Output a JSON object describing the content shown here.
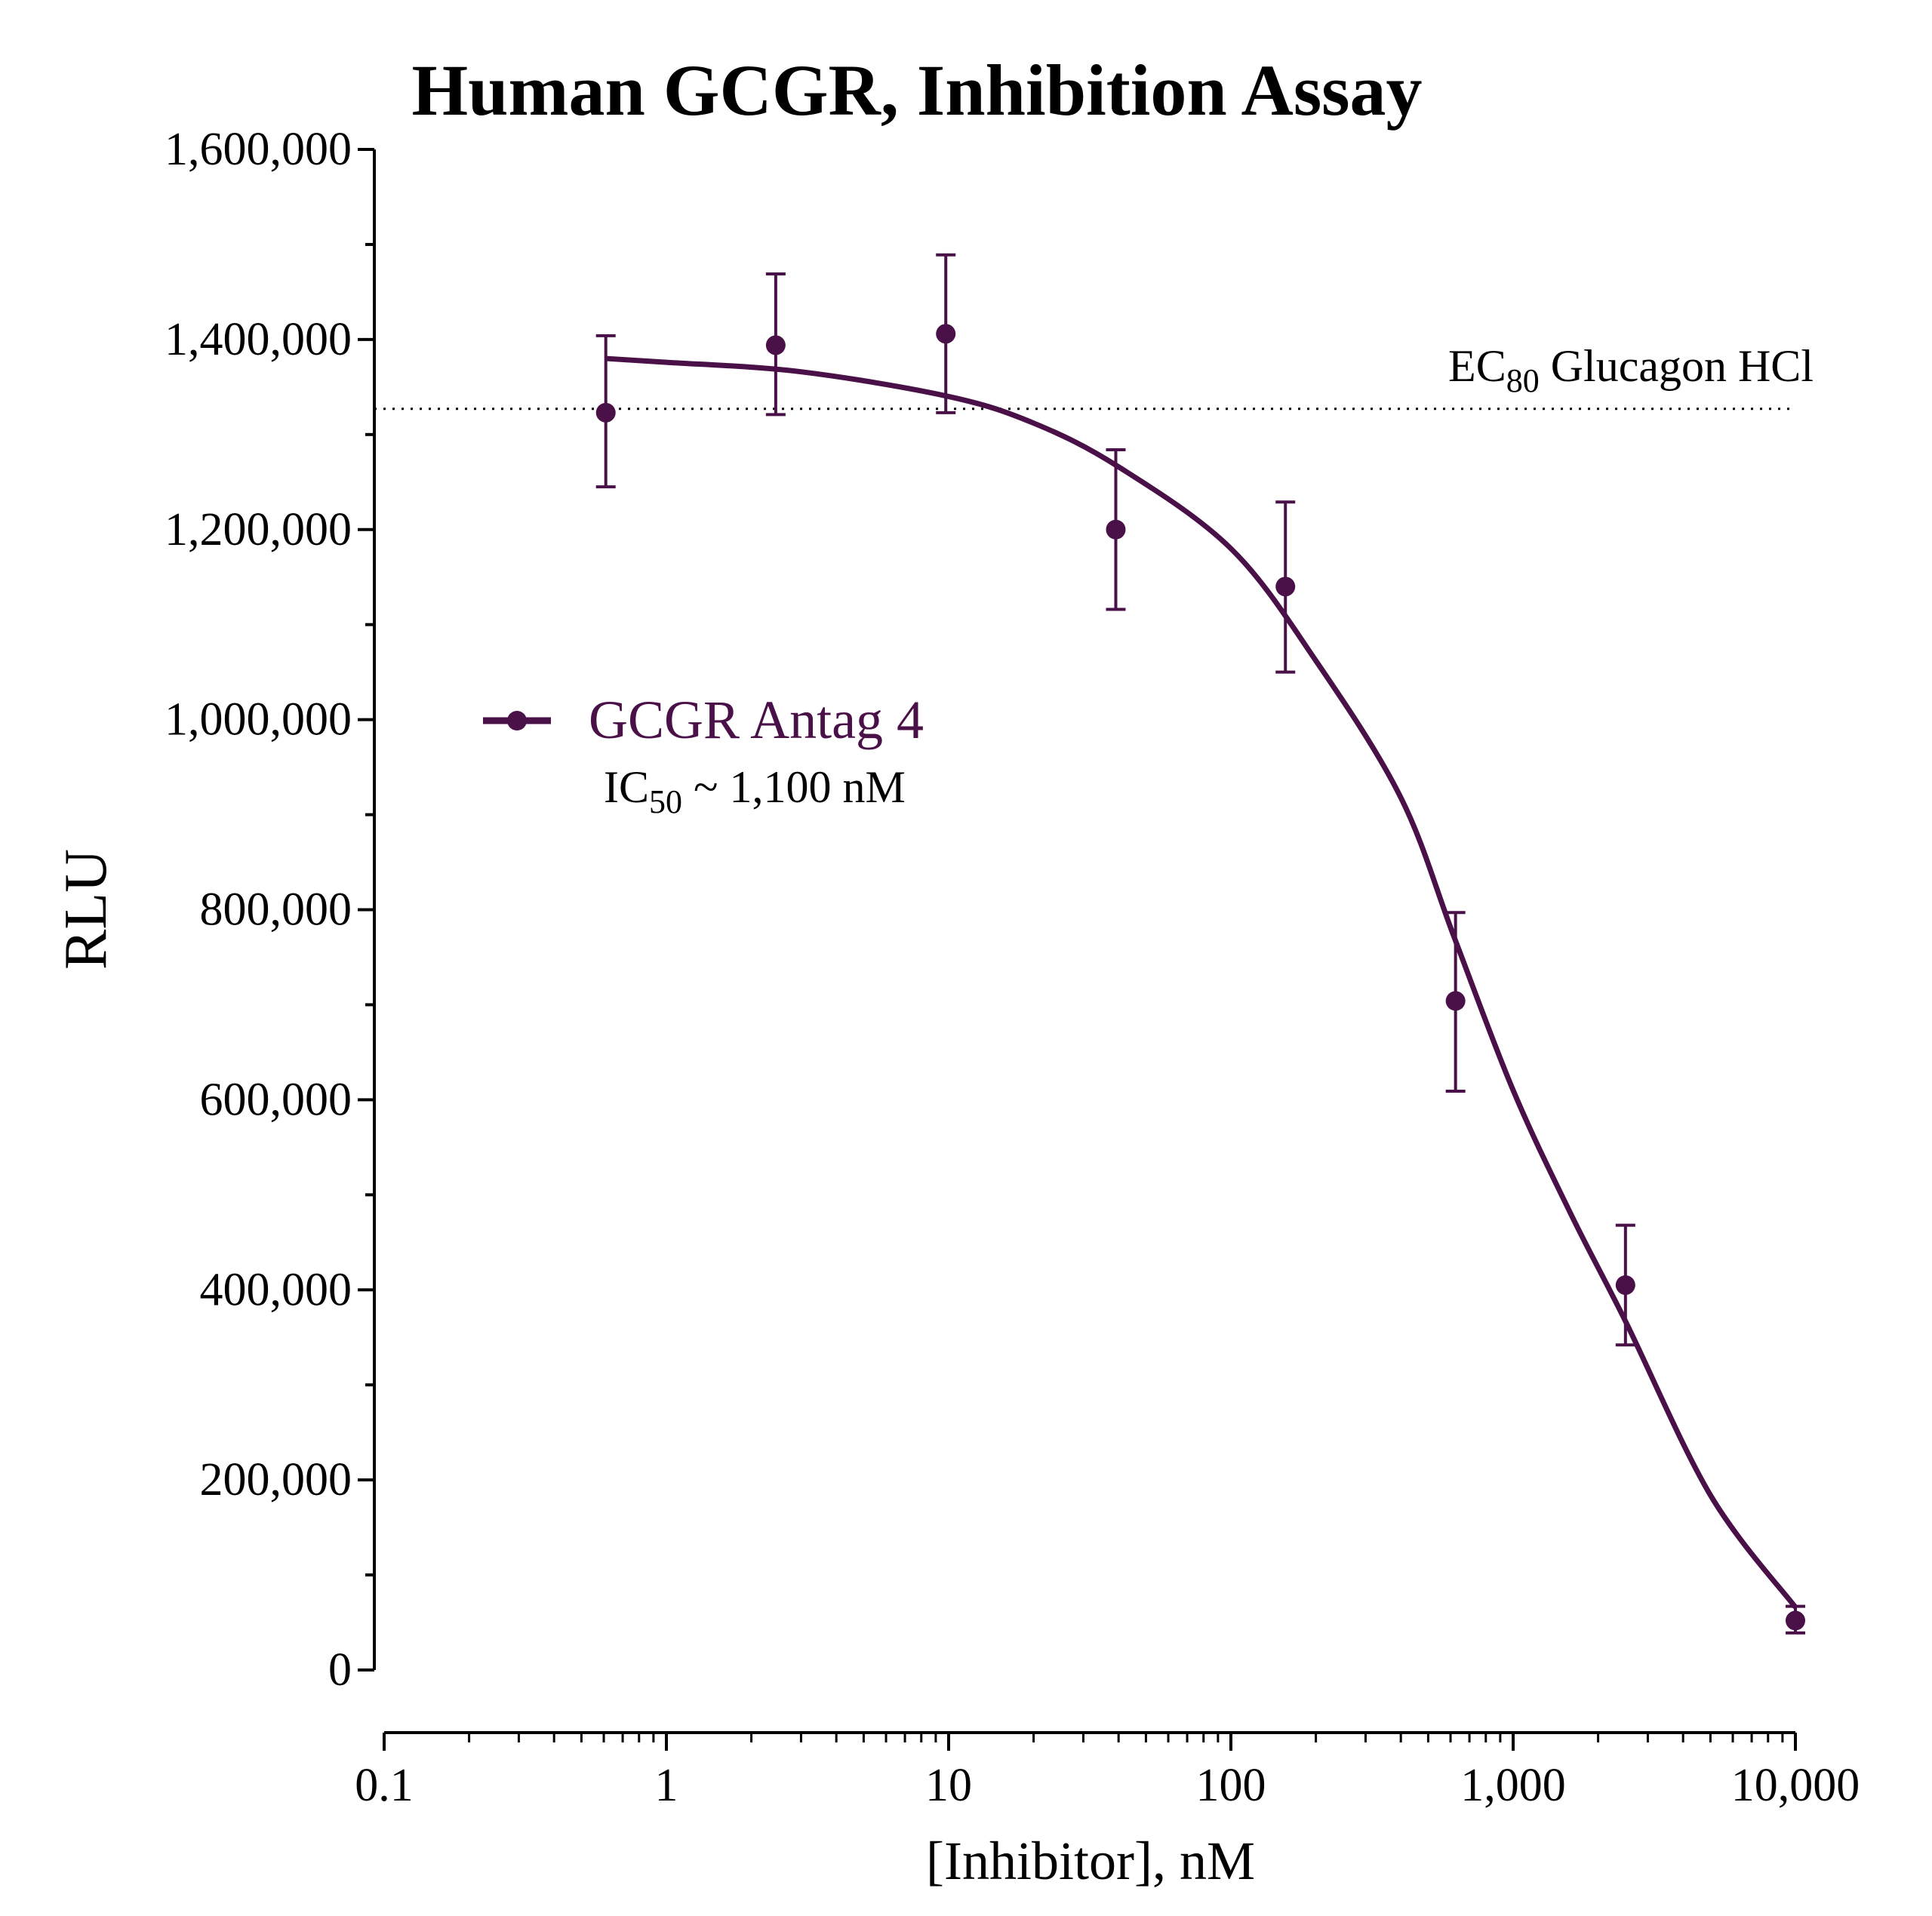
{
  "chart_data": {
    "type": "scatter",
    "title": "Human GCGR, Inhibition Assay",
    "xlabel": "[Inhibitor], nM",
    "ylabel": "RLU",
    "x_scale": "log",
    "xlim": [
      0.1,
      10000
    ],
    "ylim": [
      0,
      1600000
    ],
    "x_ticks": [
      0.1,
      1,
      10,
      100,
      1000,
      10000
    ],
    "x_tick_labels": [
      "0.1",
      "1",
      "10",
      "100",
      "1,000",
      "10,000"
    ],
    "y_ticks": [
      0,
      200000,
      400000,
      600000,
      800000,
      1000000,
      1200000,
      1400000,
      1600000
    ],
    "y_tick_labels": [
      "0",
      "200,000",
      "400,000",
      "600,000",
      "800,000",
      "1,000,000",
      "1,200,000",
      "1,400,000",
      "1,600,000"
    ],
    "grid": false,
    "legend_placement": "center-left",
    "color": "#4a1048",
    "series": [
      {
        "name": "GCGR Antag 4",
        "x": [
          0.61,
          2.44,
          9.77,
          39.1,
          156,
          625,
          2500,
          10000
        ],
        "y": [
          1323000,
          1394000,
          1406000,
          1200000,
          1140000,
          704000,
          405000,
          52000
        ],
        "error_upper": [
          1404000,
          1469000,
          1489000,
          1284000,
          1229000,
          797000,
          468000,
          67000
        ],
        "error_lower": [
          1245000,
          1321000,
          1323000,
          1116000,
          1050000,
          609000,
          342000,
          39000
        ],
        "fit_curve": {
          "x": [
            0.61,
            1,
            3,
            10,
            20,
            40,
            100,
            200,
            400,
            620,
            1000,
            1600,
            2500,
            5000,
            10000
          ],
          "y": [
            1380000,
            1376000,
            1366000,
            1340000,
            1312000,
            1266000,
            1180000,
            1062000,
            918000,
            770000,
            610000,
            480000,
            367000,
            184000,
            66000
          ]
        }
      }
    ],
    "legend_annotation": {
      "prefix": "IC",
      "sub": "50",
      "suffix": " ~ 1,100 nM"
    },
    "reference_line": {
      "y": 1327000,
      "style": "dotted",
      "label_prefix": "EC",
      "label_sub": "80",
      "label_suffix": " Glucagon HCl"
    }
  }
}
